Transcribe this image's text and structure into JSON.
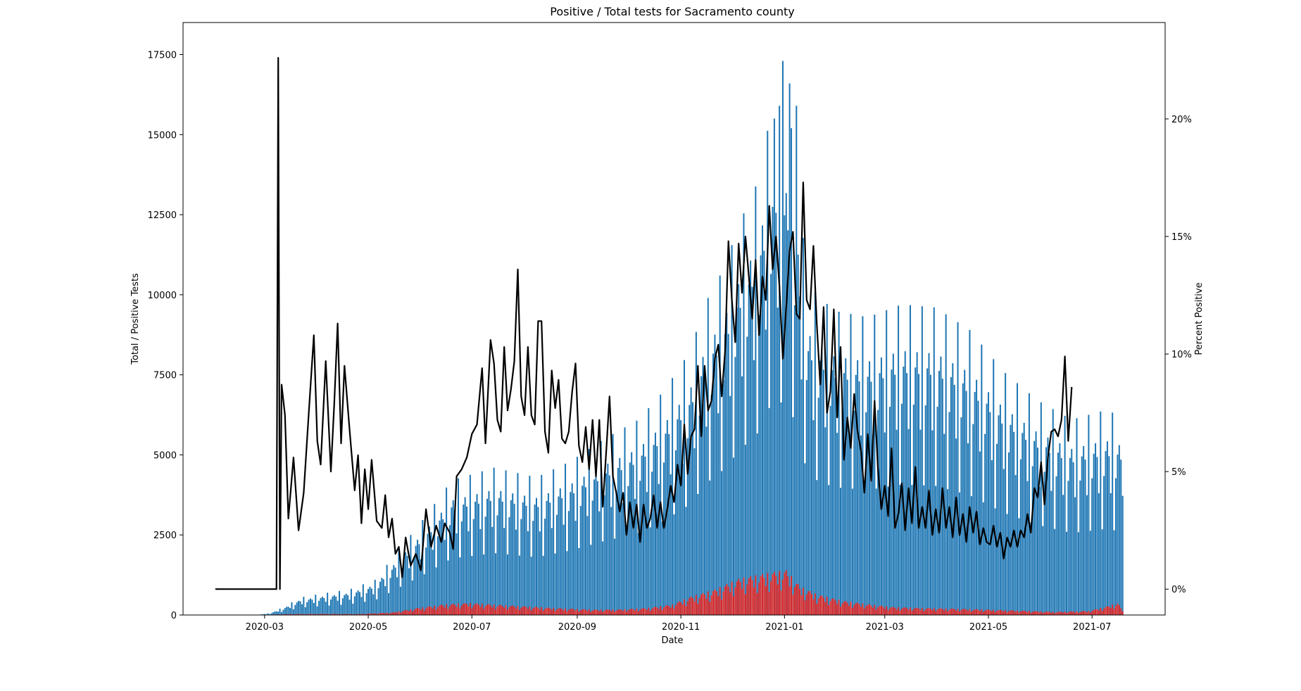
{
  "chart_data": {
    "type": "bar",
    "title": "Positive / Total tests for Sacramento county",
    "xlabel": "Date",
    "ylabel": "Total / Positive Tests",
    "y2label": "Percent Positive",
    "xlim": [
      "2020-01-13",
      "2021-08-13"
    ],
    "ylim": [
      0,
      18500
    ],
    "y2lim": [
      -1.1,
      24.1
    ],
    "x_ticks": [
      "2020-03",
      "2020-05",
      "2020-07",
      "2020-09",
      "2020-11",
      "2021-01",
      "2021-03",
      "2021-05",
      "2021-07"
    ],
    "y_ticks": [
      "0",
      "2500",
      "5000",
      "7500",
      "10000",
      "12500",
      "15000",
      "17500"
    ],
    "y2_ticks": [
      "0%",
      "5%",
      "10%",
      "15%",
      "20%"
    ],
    "grid": false,
    "colors": {
      "total": "#1f77b4",
      "positive": "#d62728",
      "percent": "#000000"
    },
    "series": [
      {
        "axis": "left",
        "kind": "bar",
        "start_date": "2020-02-25",
        "step_days": 1,
        "knots": [
          [
            0,
            0
          ],
          [
            8,
            60
          ],
          [
            16,
            240
          ],
          [
            26,
            550
          ],
          [
            40,
            680
          ],
          [
            55,
            800
          ],
          [
            70,
            1100
          ],
          [
            85,
            2100
          ],
          [
            100,
            3100
          ],
          [
            115,
            4200
          ],
          [
            140,
            4600
          ],
          [
            165,
            4300
          ],
          [
            185,
            4800
          ],
          [
            205,
            5500
          ],
          [
            225,
            6100
          ],
          [
            240,
            7000
          ],
          [
            255,
            8200
          ],
          [
            265,
            9800
          ],
          [
            275,
            10800
          ],
          [
            285,
            12300
          ],
          [
            295,
            13500
          ],
          [
            305,
            16200
          ],
          [
            315,
            15200
          ],
          [
            325,
            10300
          ],
          [
            340,
            9500
          ],
          [
            360,
            9300
          ],
          [
            380,
            9700
          ],
          [
            400,
            9600
          ],
          [
            420,
            8900
          ],
          [
            440,
            7600
          ],
          [
            460,
            6700
          ],
          [
            480,
            6100
          ],
          [
            500,
            6400
          ],
          [
            510,
            6200
          ]
        ],
        "peaks": [
          [
            310,
            17300
          ],
          [
            314,
            16600
          ],
          [
            318,
            15900
          ],
          [
            305,
            15500
          ]
        ],
        "weekly_cycle": [
          1.0,
          0.42,
          0.68,
          0.8,
          0.85,
          0.78,
          0.6
        ]
      },
      {
        "axis": "left",
        "kind": "bar",
        "start_date": "2020-02-25",
        "step_days": 1,
        "knots": [
          [
            0,
            0
          ],
          [
            10,
            15
          ],
          [
            20,
            30
          ],
          [
            40,
            35
          ],
          [
            60,
            30
          ],
          [
            80,
            80
          ],
          [
            95,
            220
          ],
          [
            110,
            330
          ],
          [
            125,
            380
          ],
          [
            140,
            330
          ],
          [
            160,
            270
          ],
          [
            180,
            210
          ],
          [
            200,
            170
          ],
          [
            215,
            180
          ],
          [
            230,
            220
          ],
          [
            245,
            330
          ],
          [
            255,
            560
          ],
          [
            270,
            800
          ],
          [
            285,
            1150
          ],
          [
            295,
            1250
          ],
          [
            305,
            1350
          ],
          [
            312,
            1400
          ],
          [
            320,
            900
          ],
          [
            330,
            650
          ],
          [
            345,
            450
          ],
          [
            360,
            340
          ],
          [
            375,
            250
          ],
          [
            395,
            220
          ],
          [
            420,
            190
          ],
          [
            450,
            140
          ],
          [
            470,
            100
          ],
          [
            490,
            130
          ],
          [
            500,
            260
          ],
          [
            507,
            380
          ],
          [
            510,
            160
          ]
        ],
        "weekly_cycle": [
          1.0,
          0.55,
          0.8,
          0.95,
          1.0,
          0.9,
          0.7
        ]
      },
      {
        "axis": "right",
        "kind": "line",
        "start_date": "2020-02-01",
        "step_days": 1,
        "knots": [
          [
            0,
            0
          ],
          [
            35,
            0
          ],
          [
            36,
            0
          ],
          [
            37,
            22.6
          ],
          [
            38,
            0
          ],
          [
            39,
            8.7
          ],
          [
            41,
            7.4
          ],
          [
            43,
            3.0
          ],
          [
            46,
            5.6
          ],
          [
            49,
            2.5
          ],
          [
            52,
            4.1
          ],
          [
            55,
            7.5
          ],
          [
            58,
            10.8
          ],
          [
            60,
            6.3
          ],
          [
            62,
            5.3
          ],
          [
            65,
            9.7
          ],
          [
            68,
            5.0
          ],
          [
            70,
            7.9
          ],
          [
            72,
            11.3
          ],
          [
            74,
            6.2
          ],
          [
            76,
            9.5
          ],
          [
            79,
            6.8
          ],
          [
            82,
            4.2
          ],
          [
            84,
            5.7
          ],
          [
            86,
            2.8
          ],
          [
            88,
            5.1
          ],
          [
            90,
            3.4
          ],
          [
            92,
            5.5
          ],
          [
            95,
            2.9
          ],
          [
            98,
            2.6
          ],
          [
            100,
            4.0
          ],
          [
            102,
            2.2
          ],
          [
            104,
            3.0
          ],
          [
            106,
            1.5
          ],
          [
            108,
            1.8
          ],
          [
            110,
            0.5
          ],
          [
            112,
            2.2
          ],
          [
            115,
            1.0
          ],
          [
            118,
            1.5
          ],
          [
            121,
            0.8
          ],
          [
            124,
            3.4
          ],
          [
            127,
            1.8
          ],
          [
            130,
            2.7
          ],
          [
            133,
            2.0
          ],
          [
            135,
            2.8
          ],
          [
            138,
            2.4
          ],
          [
            140,
            1.7
          ],
          [
            142,
            4.8
          ],
          [
            145,
            5.1
          ],
          [
            148,
            5.6
          ],
          [
            151,
            6.6
          ],
          [
            154,
            7.0
          ],
          [
            157,
            9.4
          ],
          [
            159,
            6.2
          ],
          [
            162,
            10.6
          ],
          [
            164,
            9.6
          ],
          [
            166,
            7.2
          ],
          [
            168,
            6.7
          ],
          [
            170,
            10.3
          ],
          [
            172,
            7.6
          ],
          [
            174,
            8.5
          ],
          [
            176,
            9.7
          ],
          [
            178,
            13.6
          ],
          [
            180,
            8.2
          ],
          [
            182,
            7.4
          ],
          [
            184,
            10.3
          ],
          [
            186,
            7.4
          ],
          [
            188,
            7.0
          ],
          [
            190,
            11.4
          ],
          [
            192,
            11.4
          ],
          [
            194,
            6.7
          ],
          [
            196,
            5.8
          ],
          [
            198,
            9.3
          ],
          [
            200,
            7.7
          ],
          [
            202,
            8.9
          ],
          [
            204,
            6.4
          ],
          [
            206,
            6.2
          ],
          [
            208,
            6.7
          ],
          [
            210,
            8.4
          ],
          [
            212,
            9.6
          ],
          [
            214,
            6.1
          ],
          [
            216,
            5.4
          ],
          [
            218,
            6.9
          ],
          [
            220,
            5.1
          ],
          [
            222,
            7.2
          ],
          [
            224,
            4.8
          ],
          [
            226,
            7.2
          ],
          [
            228,
            3.5
          ],
          [
            230,
            5.8
          ],
          [
            232,
            8.2
          ],
          [
            234,
            4.8
          ],
          [
            236,
            4.1
          ],
          [
            238,
            3.3
          ],
          [
            240,
            4.1
          ],
          [
            242,
            2.3
          ],
          [
            244,
            3.7
          ],
          [
            246,
            2.6
          ],
          [
            248,
            3.6
          ],
          [
            250,
            2.0
          ],
          [
            252,
            3.6
          ],
          [
            254,
            2.6
          ],
          [
            256,
            3.0
          ],
          [
            258,
            4.0
          ],
          [
            260,
            2.6
          ],
          [
            262,
            3.7
          ],
          [
            264,
            2.6
          ],
          [
            266,
            3.4
          ],
          [
            268,
            4.4
          ],
          [
            270,
            3.7
          ],
          [
            272,
            5.3
          ],
          [
            274,
            4.4
          ],
          [
            276,
            7.0
          ],
          [
            278,
            4.9
          ],
          [
            280,
            6.5
          ],
          [
            282,
            6.8
          ],
          [
            284,
            9.5
          ],
          [
            286,
            6.5
          ],
          [
            288,
            9.5
          ],
          [
            290,
            7.6
          ],
          [
            292,
            8.0
          ],
          [
            294,
            9.8
          ],
          [
            296,
            10.4
          ],
          [
            298,
            8.2
          ],
          [
            300,
            10.1
          ],
          [
            302,
            14.8
          ],
          [
            304,
            12.3
          ],
          [
            306,
            10.5
          ],
          [
            308,
            14.7
          ],
          [
            310,
            12.6
          ],
          [
            312,
            15.0
          ],
          [
            314,
            13.3
          ],
          [
            316,
            11.5
          ],
          [
            318,
            14.0
          ],
          [
            320,
            10.8
          ],
          [
            322,
            13.3
          ],
          [
            324,
            12.3
          ],
          [
            326,
            16.3
          ],
          [
            328,
            13.6
          ],
          [
            330,
            15.0
          ],
          [
            332,
            12.9
          ],
          [
            334,
            9.8
          ],
          [
            336,
            12.0
          ],
          [
            338,
            14.4
          ],
          [
            340,
            15.2
          ],
          [
            342,
            11.7
          ],
          [
            344,
            11.5
          ],
          [
            346,
            17.3
          ],
          [
            348,
            12.3
          ],
          [
            350,
            11.9
          ],
          [
            352,
            14.6
          ],
          [
            354,
            11.3
          ],
          [
            356,
            8.7
          ],
          [
            358,
            12.0
          ],
          [
            360,
            7.5
          ],
          [
            362,
            8.4
          ],
          [
            364,
            11.9
          ],
          [
            366,
            7.3
          ],
          [
            368,
            10.3
          ],
          [
            370,
            5.5
          ],
          [
            372,
            7.3
          ],
          [
            374,
            6.0
          ],
          [
            376,
            8.3
          ],
          [
            378,
            6.7
          ],
          [
            380,
            5.9
          ],
          [
            382,
            4.1
          ],
          [
            384,
            6.6
          ],
          [
            386,
            4.6
          ],
          [
            388,
            8.0
          ],
          [
            390,
            5.1
          ],
          [
            392,
            3.4
          ],
          [
            394,
            4.4
          ],
          [
            396,
            3.1
          ],
          [
            398,
            6.0
          ],
          [
            400,
            2.6
          ],
          [
            402,
            3.2
          ],
          [
            404,
            4.5
          ],
          [
            406,
            2.5
          ],
          [
            408,
            4.3
          ],
          [
            410,
            2.8
          ],
          [
            412,
            5.2
          ],
          [
            414,
            2.6
          ],
          [
            416,
            3.5
          ],
          [
            418,
            2.6
          ],
          [
            420,
            4.2
          ],
          [
            422,
            2.3
          ],
          [
            424,
            3.4
          ],
          [
            426,
            2.4
          ],
          [
            428,
            4.3
          ],
          [
            430,
            2.6
          ],
          [
            432,
            3.5
          ],
          [
            434,
            2.2
          ],
          [
            436,
            3.9
          ],
          [
            438,
            2.3
          ],
          [
            440,
            3.2
          ],
          [
            442,
            2.0
          ],
          [
            444,
            3.5
          ],
          [
            446,
            2.4
          ],
          [
            448,
            3.3
          ],
          [
            450,
            1.9
          ],
          [
            452,
            2.6
          ],
          [
            454,
            2.0
          ],
          [
            456,
            1.9
          ],
          [
            458,
            2.7
          ],
          [
            460,
            1.8
          ],
          [
            462,
            2.4
          ],
          [
            464,
            1.3
          ],
          [
            466,
            2.2
          ],
          [
            468,
            1.8
          ],
          [
            470,
            2.5
          ],
          [
            472,
            1.8
          ],
          [
            474,
            2.5
          ],
          [
            476,
            2.2
          ],
          [
            478,
            3.2
          ],
          [
            480,
            2.4
          ],
          [
            482,
            4.3
          ],
          [
            484,
            3.9
          ],
          [
            486,
            5.4
          ],
          [
            488,
            3.6
          ],
          [
            490,
            5.6
          ],
          [
            492,
            6.7
          ],
          [
            494,
            6.8
          ],
          [
            496,
            6.5
          ],
          [
            498,
            7.2
          ],
          [
            500,
            9.9
          ],
          [
            502,
            6.3
          ],
          [
            504,
            8.6
          ]
        ]
      }
    ],
    "legend": []
  }
}
